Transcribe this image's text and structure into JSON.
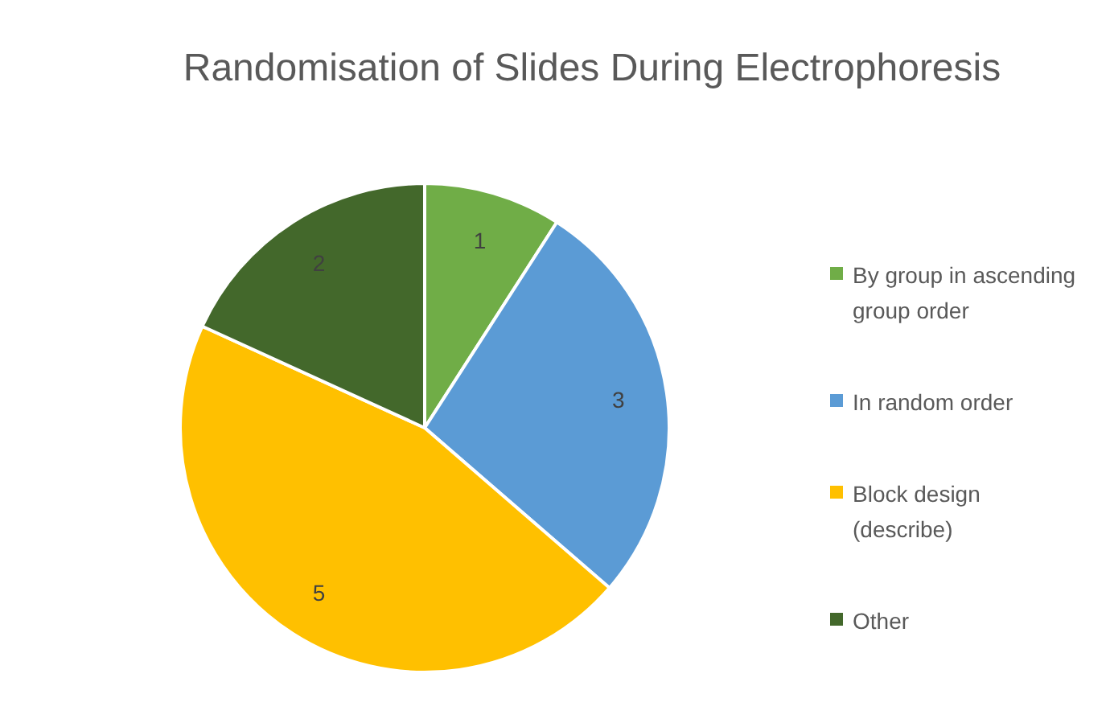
{
  "chart_data": {
    "type": "pie",
    "title": "Randomisation of Slides During Electrophoresis",
    "categories": [
      "By group in ascending group order",
      "In random order",
      "Block design (describe)",
      "Other"
    ],
    "values": [
      1,
      3,
      5,
      2
    ],
    "colors": [
      "#70ad47",
      "#5b9bd5",
      "#ffc000",
      "#43682b"
    ],
    "data_labels": true,
    "legend": "right"
  }
}
